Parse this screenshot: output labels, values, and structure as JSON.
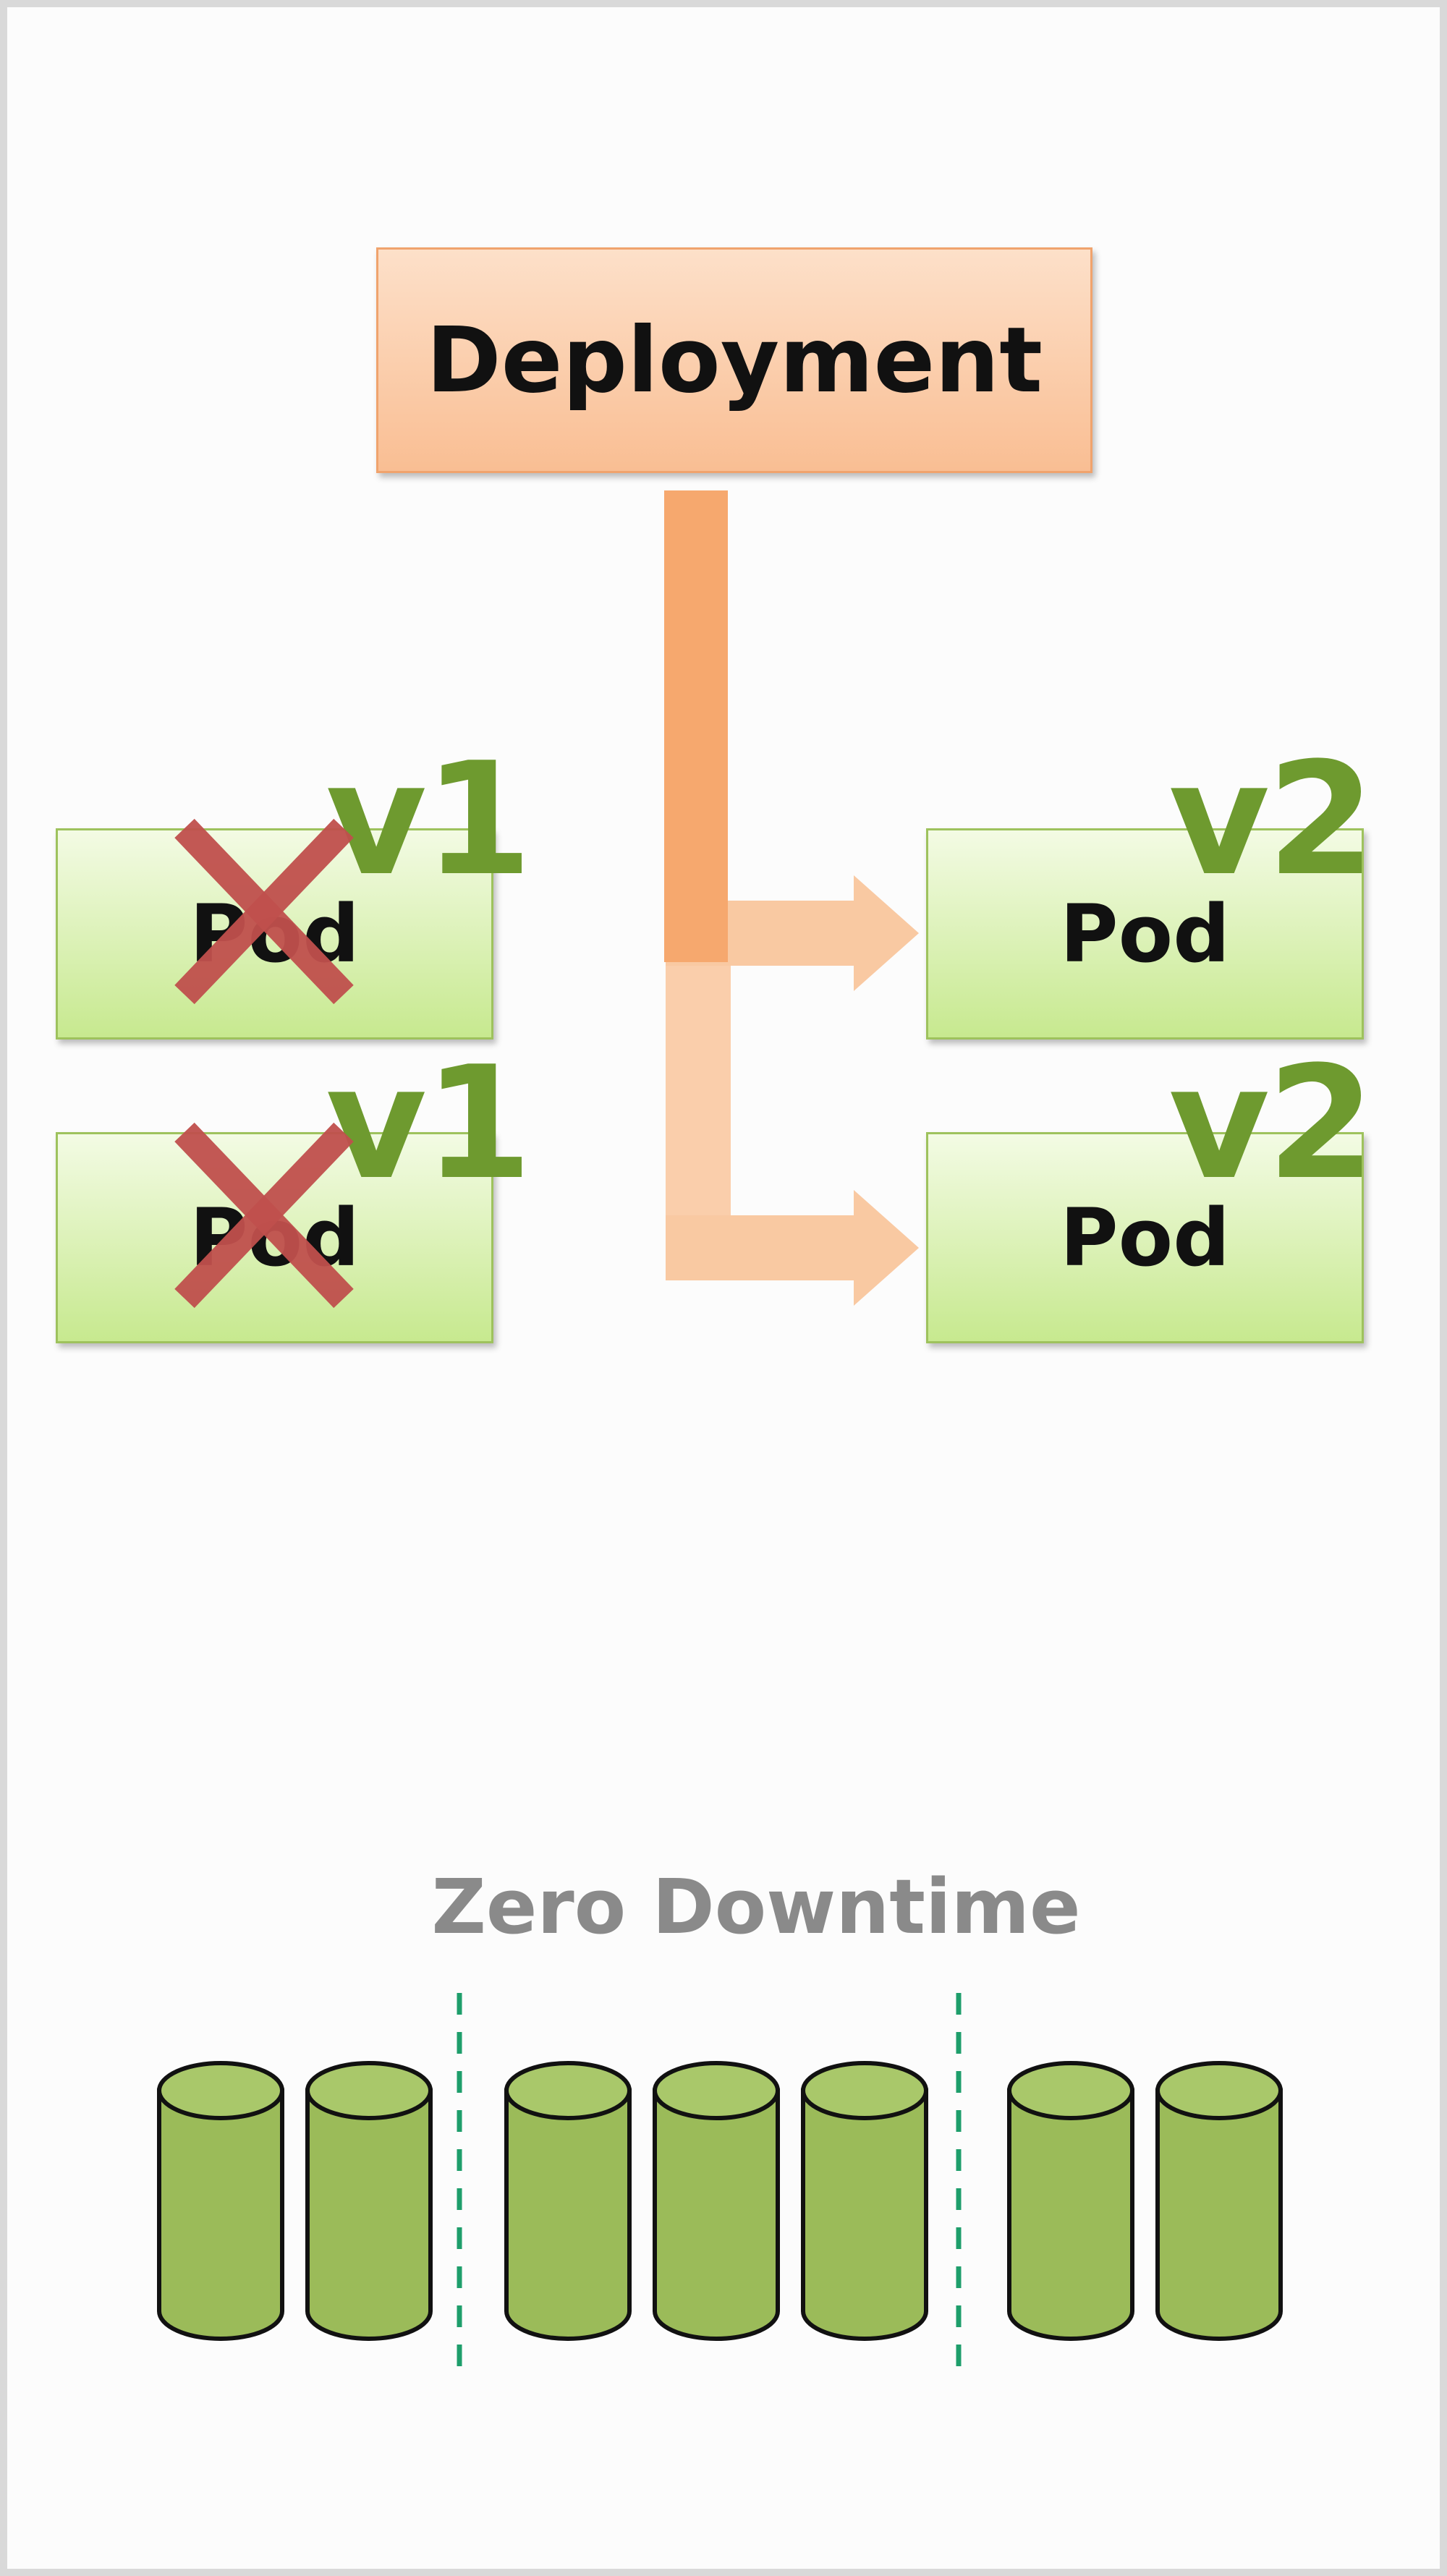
{
  "deployment": {
    "label": "Deployment"
  },
  "old_pods": [
    {
      "label": "Pod",
      "version": "v1"
    },
    {
      "label": "Pod",
      "version": "v1"
    }
  ],
  "new_pods": [
    {
      "label": "Pod",
      "version": "v2"
    },
    {
      "label": "Pod",
      "version": "v2"
    }
  ],
  "zero_downtime": {
    "title": "Zero Downtime"
  },
  "colors": {
    "deployment_fill": "#f9be93",
    "pod_fill": "#c7e98f",
    "version_text": "#6e9a2f",
    "cross": "#c0504d",
    "arrow_strong": "#f6a86e",
    "arrow_light": "#f9c9a2",
    "cylinder": "#9bbb59",
    "divider": "#1e9e6b"
  }
}
